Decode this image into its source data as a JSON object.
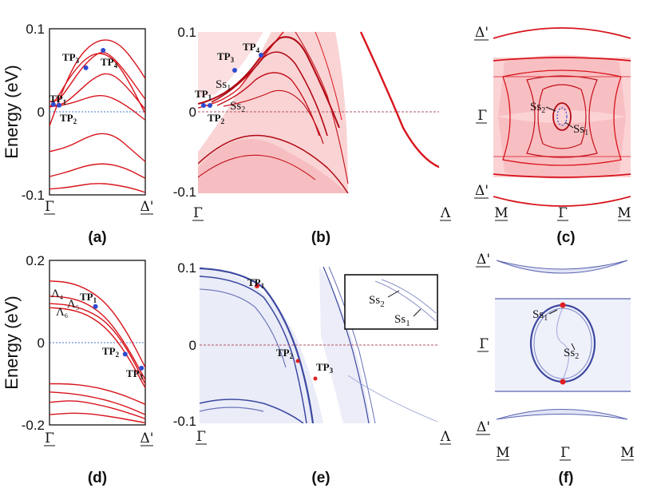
{
  "colors": {
    "band_red": "#d8141c",
    "band_blue": "#3c48a0",
    "ref_blue": "#4a74c8",
    "ref_red": "#b05060",
    "tp_blue": "#2e4bd0",
    "tp_red": "#e02020",
    "shade_red": "#f8c4c6",
    "shade_blue": "#d8dcf2"
  },
  "chart_data": [
    {
      "panel": "(a)",
      "type": "line",
      "ylabel": "Energy (eV)",
      "ylim": [
        -0.1,
        0.1
      ],
      "yticks": [
        "0.1",
        "0",
        "-0.1"
      ],
      "xticks": [
        "Γ",
        "Δ'"
      ],
      "series": [
        {
          "values": [
            [
              0,
              -0.017
            ],
            [
              0.15,
              0.03
            ],
            [
              0.3,
              0.065
            ],
            [
              0.45,
              0.083
            ],
            [
              0.6,
              0.088
            ],
            [
              0.75,
              0.08
            ],
            [
              0.9,
              0.058
            ],
            [
              1.0,
              0.04
            ]
          ]
        },
        {
          "values": [
            [
              0,
              0.005
            ],
            [
              0.1,
              0.02
            ],
            [
              0.2,
              0.04
            ],
            [
              0.35,
              0.062
            ],
            [
              0.5,
              0.072
            ],
            [
              0.65,
              0.066
            ],
            [
              0.8,
              0.043
            ],
            [
              1.0,
              -0.002
            ]
          ]
        },
        {
          "values": [
            [
              0,
              0.012
            ],
            [
              0.1,
              0.014
            ],
            [
              0.2,
              0.03
            ],
            [
              0.35,
              0.055
            ],
            [
              0.5,
              0.071
            ],
            [
              0.6,
              0.072
            ],
            [
              0.75,
              0.055
            ],
            [
              1.0,
              0.015
            ]
          ]
        },
        {
          "values": [
            [
              0,
              0.007
            ],
            [
              0.15,
              0.009
            ],
            [
              0.3,
              0.024
            ],
            [
              0.45,
              0.04
            ],
            [
              0.6,
              0.048
            ],
            [
              0.75,
              0.038
            ],
            [
              1.0,
              0.003
            ]
          ]
        },
        {
          "values": [
            [
              0,
              0.006
            ],
            [
              0.15,
              0.008
            ],
            [
              0.3,
              0.013
            ],
            [
              0.45,
              0.019
            ],
            [
              0.6,
              0.02
            ],
            [
              0.8,
              0.008
            ],
            [
              1.0,
              -0.01
            ]
          ]
        },
        {
          "values": [
            [
              0,
              -0.048
            ],
            [
              0.2,
              -0.042
            ],
            [
              0.4,
              -0.03
            ],
            [
              0.55,
              -0.025
            ],
            [
              0.7,
              -0.03
            ],
            [
              0.85,
              -0.045
            ],
            [
              1.0,
              -0.06
            ]
          ]
        },
        {
          "values": [
            [
              0,
              -0.078
            ],
            [
              0.2,
              -0.072
            ],
            [
              0.4,
              -0.064
            ],
            [
              0.6,
              -0.062
            ],
            [
              0.8,
              -0.068
            ],
            [
              1.0,
              -0.08
            ]
          ]
        },
        {
          "values": [
            [
              0,
              -0.093
            ],
            [
              0.2,
              -0.091
            ],
            [
              0.5,
              -0.085
            ],
            [
              0.8,
              -0.09
            ],
            [
              1.0,
              -0.097
            ]
          ]
        }
      ],
      "labels": [
        "TP",
        "TP",
        "TP",
        "TP"
      ],
      "label_subs": [
        "1",
        "2",
        "3",
        "4"
      ],
      "points": [
        [
          0.04,
          0.009
        ],
        [
          0.1,
          0.008
        ],
        [
          0.38,
          0.053
        ],
        [
          0.56,
          0.074
        ]
      ],
      "xlabel_text": "(a)"
    },
    {
      "panel": "(b)",
      "type": "heatmap",
      "ylim": [
        -0.1,
        0.1
      ],
      "yticks": [
        "0.1",
        "0",
        "-0.1"
      ],
      "xticks": [
        "Γ",
        "Λ"
      ],
      "labels": [
        "TP",
        "TP",
        "TP",
        "TP",
        "Ss",
        "Ss"
      ],
      "label_subs": [
        "1",
        "2",
        "3",
        "4",
        "1",
        "2"
      ]
    },
    {
      "panel": "(c)",
      "type": "heatmap",
      "yticks": [
        "Δ'",
        "Γ",
        "Δ'"
      ],
      "xticks": [
        "M",
        "Γ",
        "M"
      ],
      "labels": [
        "Ss",
        "Ss"
      ],
      "label_subs": [
        "2",
        "1"
      ]
    },
    {
      "panel": "(d)",
      "type": "line",
      "ylabel": "Energy (eV)",
      "ylim": [
        -0.2,
        0.2
      ],
      "yticks": [
        "0.2",
        "0",
        "-0.2"
      ],
      "xticks": [
        "Γ",
        "Δ'"
      ],
      "series": [
        {
          "values": [
            [
              0,
              0.15
            ],
            [
              0.2,
              0.147
            ],
            [
              0.4,
              0.13
            ],
            [
              0.6,
              0.095
            ],
            [
              0.8,
              0.03
            ],
            [
              1.0,
              -0.06
            ]
          ]
        },
        {
          "values": [
            [
              0,
              0.113
            ],
            [
              0.2,
              0.11
            ],
            [
              0.4,
              0.095
            ],
            [
              0.6,
              0.06
            ],
            [
              0.8,
              -0.005
            ],
            [
              1.0,
              -0.09
            ]
          ]
        },
        {
          "values": [
            [
              0,
              0.095
            ],
            [
              0.2,
              0.092
            ],
            [
              0.4,
              0.078
            ],
            [
              0.6,
              0.05
            ],
            [
              0.8,
              -0.01
            ],
            [
              1.0,
              -0.1
            ]
          ]
        },
        {
          "values": [
            [
              0,
              0.085
            ],
            [
              0.2,
              0.082
            ],
            [
              0.4,
              0.068
            ],
            [
              0.6,
              0.035
            ],
            [
              0.8,
              -0.025
            ],
            [
              1.0,
              -0.11
            ]
          ]
        },
        {
          "values": [
            [
              0,
              -0.1
            ],
            [
              0.2,
              -0.1
            ],
            [
              0.4,
              -0.105
            ],
            [
              0.6,
              -0.115
            ],
            [
              0.8,
              -0.13
            ],
            [
              1.0,
              -0.15
            ]
          ]
        },
        {
          "values": [
            [
              0,
              -0.12
            ],
            [
              0.2,
              -0.123
            ],
            [
              0.4,
              -0.13
            ],
            [
              0.6,
              -0.14
            ],
            [
              0.8,
              -0.155
            ],
            [
              1.0,
              -0.175
            ]
          ]
        },
        {
          "values": [
            [
              0,
              -0.145
            ],
            [
              0.25,
              -0.14
            ],
            [
              0.5,
              -0.15
            ],
            [
              0.75,
              -0.165
            ],
            [
              1.0,
              -0.185
            ]
          ]
        },
        {
          "values": [
            [
              0,
              -0.175
            ],
            [
              0.3,
              -0.17
            ],
            [
              0.6,
              -0.178
            ],
            [
              1.0,
              -0.195
            ]
          ]
        }
      ],
      "labels": [
        "TP",
        "TP",
        "TP"
      ],
      "label_subs": [
        "1",
        "2",
        "3"
      ],
      "level_labels": [
        "Λ",
        "Λ",
        "Λ"
      ],
      "level_subs": [
        "4",
        "5",
        "6"
      ],
      "points": [
        [
          0.48,
          0.088
        ],
        [
          0.79,
          -0.028
        ],
        [
          0.96,
          -0.062
        ]
      ]
    },
    {
      "panel": "(e)",
      "type": "heatmap",
      "ylim": [
        -0.1,
        0.1
      ],
      "yticks": [
        "0.1",
        "0",
        "-0.1"
      ],
      "xticks": [
        "Γ",
        "Λ"
      ],
      "labels": [
        "TP",
        "TP",
        "TP",
        "Ss",
        "Ss"
      ],
      "label_subs": [
        "1",
        "2",
        "3",
        "2",
        "1"
      ]
    },
    {
      "panel": "(f)",
      "type": "heatmap",
      "yticks": [
        "Δ'",
        "Γ",
        "Δ'"
      ],
      "xticks": [
        "M",
        "Γ",
        "M"
      ],
      "labels": [
        "Ss",
        "Ss"
      ],
      "label_subs": [
        "1",
        "2"
      ]
    }
  ]
}
